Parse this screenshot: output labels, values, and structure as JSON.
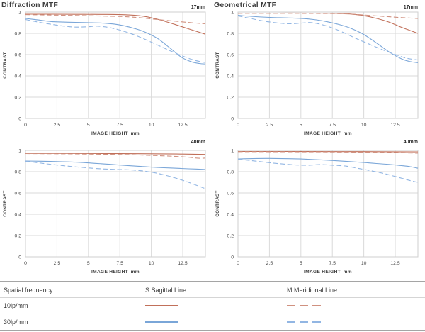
{
  "colors": {
    "s10": "#c1705a",
    "m10": "#d09180",
    "s30": "#7aa6d8",
    "m30": "#92b6e3",
    "grid": "#dadada",
    "plot_border": "#cfcfcf",
    "tick_text": "#474747",
    "axis_title_text": "#3f3f3f",
    "background": "#ffffff"
  },
  "axis": {
    "x_label": "IMAGE HEIGHT",
    "x_unit": "mm",
    "y_label": "CONTRAST",
    "x_ticks": [
      0,
      2.5,
      5,
      7.5,
      10,
      12.5
    ],
    "y_ticks": [
      1,
      0.8,
      0.6,
      0.4,
      0.2,
      0
    ],
    "x_max": 14.3,
    "y_max": 1
  },
  "chart_data": [
    {
      "type": "line",
      "title": "Diffraction MTF",
      "focal_length": "17mm",
      "xlabel": "IMAGE HEIGHT mm",
      "ylabel": "CONTRAST",
      "xlim": [
        0,
        14.3
      ],
      "ylim": [
        0,
        1
      ],
      "grid": true,
      "legend_position": "none",
      "series": [
        {
          "name": "S 10lp/mm",
          "style": "solid",
          "color_key": "s10",
          "points": [
            [
              0,
              0.98
            ],
            [
              2,
              0.98
            ],
            [
              4,
              0.979
            ],
            [
              6,
              0.978
            ],
            [
              7.5,
              0.976
            ],
            [
              9,
              0.966
            ],
            [
              10,
              0.947
            ],
            [
              11,
              0.916
            ],
            [
              12,
              0.879
            ],
            [
              13,
              0.841
            ],
            [
              14.3,
              0.792
            ]
          ]
        },
        {
          "name": "M 10lp/mm",
          "style": "dashed",
          "color_key": "m10",
          "points": [
            [
              0,
              0.976
            ],
            [
              2,
              0.972
            ],
            [
              4,
              0.968
            ],
            [
              6,
              0.963
            ],
            [
              8,
              0.956
            ],
            [
              9,
              0.948
            ],
            [
              10,
              0.936
            ],
            [
              11,
              0.924
            ],
            [
              12,
              0.913
            ],
            [
              13,
              0.902
            ],
            [
              14.3,
              0.89
            ]
          ]
        },
        {
          "name": "S 30lp/mm",
          "style": "solid",
          "color_key": "s30",
          "points": [
            [
              0,
              0.94
            ],
            [
              1,
              0.926
            ],
            [
              2,
              0.911
            ],
            [
              3,
              0.906
            ],
            [
              4,
              0.903
            ],
            [
              5,
              0.9
            ],
            [
              6,
              0.897
            ],
            [
              7,
              0.888
            ],
            [
              7.8,
              0.872
            ],
            [
              8.7,
              0.845
            ],
            [
              9.5,
              0.812
            ],
            [
              10.5,
              0.752
            ],
            [
              11.5,
              0.66
            ],
            [
              12.4,
              0.575
            ],
            [
              13.2,
              0.532
            ],
            [
              13.8,
              0.517
            ],
            [
              14.3,
              0.512
            ]
          ]
        },
        {
          "name": "M 30lp/mm",
          "style": "dashed",
          "color_key": "m30",
          "points": [
            [
              0,
              0.93
            ],
            [
              1,
              0.906
            ],
            [
              2,
              0.886
            ],
            [
              3,
              0.869
            ],
            [
              4,
              0.859
            ],
            [
              5,
              0.862
            ],
            [
              5.7,
              0.868
            ],
            [
              6.6,
              0.856
            ],
            [
              7.5,
              0.831
            ],
            [
              8.5,
              0.792
            ],
            [
              9.5,
              0.744
            ],
            [
              10.5,
              0.69
            ],
            [
              11.5,
              0.636
            ],
            [
              12.5,
              0.586
            ],
            [
              13.4,
              0.548
            ],
            [
              14.3,
              0.525
            ]
          ]
        }
      ]
    },
    {
      "type": "line",
      "title": "Geometrical MTF",
      "focal_length": "17mm",
      "xlabel": "IMAGE HEIGHT mm",
      "ylabel": "CONTRAST",
      "xlim": [
        0,
        14.3
      ],
      "ylim": [
        0,
        1
      ],
      "grid": true,
      "legend_position": "none",
      "series": [
        {
          "name": "S 10lp/mm",
          "style": "solid",
          "color_key": "s10",
          "points": [
            [
              0,
              0.99
            ],
            [
              3,
              0.99
            ],
            [
              6,
              0.99
            ],
            [
              8,
              0.988
            ],
            [
              9,
              0.981
            ],
            [
              10,
              0.966
            ],
            [
              11,
              0.941
            ],
            [
              12,
              0.906
            ],
            [
              13,
              0.857
            ],
            [
              14.3,
              0.8
            ]
          ]
        },
        {
          "name": "M 10lp/mm",
          "style": "dashed",
          "color_key": "m10",
          "points": [
            [
              0,
              0.988
            ],
            [
              3,
              0.988
            ],
            [
              6,
              0.987
            ],
            [
              8,
              0.985
            ],
            [
              9,
              0.981
            ],
            [
              10,
              0.973
            ],
            [
              11,
              0.964
            ],
            [
              12,
              0.956
            ],
            [
              13,
              0.948
            ],
            [
              14.3,
              0.94
            ]
          ]
        },
        {
          "name": "S 30lp/mm",
          "style": "solid",
          "color_key": "s30",
          "points": [
            [
              0,
              0.97
            ],
            [
              1,
              0.96
            ],
            [
              2.5,
              0.95
            ],
            [
              4,
              0.945
            ],
            [
              5,
              0.941
            ],
            [
              6,
              0.93
            ],
            [
              7,
              0.911
            ],
            [
              8,
              0.884
            ],
            [
              9,
              0.846
            ],
            [
              10,
              0.789
            ],
            [
              11,
              0.71
            ],
            [
              12,
              0.626
            ],
            [
              13,
              0.56
            ],
            [
              13.7,
              0.534
            ],
            [
              14.3,
              0.524
            ]
          ]
        },
        {
          "name": "M 30lp/mm",
          "style": "dashed",
          "color_key": "m30",
          "points": [
            [
              0,
              0.964
            ],
            [
              1,
              0.94
            ],
            [
              2,
              0.916
            ],
            [
              3,
              0.9
            ],
            [
              4,
              0.89
            ],
            [
              5,
              0.896
            ],
            [
              5.8,
              0.901
            ],
            [
              6.6,
              0.884
            ],
            [
              7.5,
              0.851
            ],
            [
              8.5,
              0.801
            ],
            [
              9.5,
              0.746
            ],
            [
              10.5,
              0.695
            ],
            [
              11.5,
              0.645
            ],
            [
              12.5,
              0.601
            ],
            [
              13.4,
              0.566
            ],
            [
              14.3,
              0.55
            ]
          ]
        }
      ]
    },
    {
      "type": "line",
      "title": "",
      "focal_length": "40mm",
      "xlabel": "IMAGE HEIGHT mm",
      "ylabel": "CONTRAST",
      "xlim": [
        0,
        14.3
      ],
      "ylim": [
        0,
        1
      ],
      "grid": true,
      "legend_position": "none",
      "series": [
        {
          "name": "S 10lp/mm",
          "style": "solid",
          "color_key": "s10",
          "points": [
            [
              0,
              0.972
            ],
            [
              3,
              0.972
            ],
            [
              6,
              0.971
            ],
            [
              9,
              0.969
            ],
            [
              12,
              0.966
            ],
            [
              14.3,
              0.962
            ]
          ]
        },
        {
          "name": "M 10lp/mm",
          "style": "dashed",
          "color_key": "m10",
          "points": [
            [
              0,
              0.97
            ],
            [
              3,
              0.968
            ],
            [
              6,
              0.964
            ],
            [
              8,
              0.96
            ],
            [
              10,
              0.953
            ],
            [
              12,
              0.943
            ],
            [
              13,
              0.935
            ],
            [
              13.8,
              0.926
            ],
            [
              14.3,
              0.928
            ]
          ]
        },
        {
          "name": "S 30lp/mm",
          "style": "solid",
          "color_key": "s30",
          "points": [
            [
              0,
              0.9
            ],
            [
              2,
              0.896
            ],
            [
              4,
              0.889
            ],
            [
              6,
              0.875
            ],
            [
              7.5,
              0.862
            ],
            [
              9,
              0.851
            ],
            [
              10,
              0.843
            ],
            [
              11,
              0.837
            ],
            [
              12,
              0.832
            ],
            [
              13,
              0.827
            ],
            [
              14.3,
              0.821
            ]
          ]
        },
        {
          "name": "M 30lp/mm",
          "style": "dashed",
          "color_key": "m30",
          "points": [
            [
              0,
              0.898
            ],
            [
              1.5,
              0.876
            ],
            [
              3,
              0.856
            ],
            [
              4.5,
              0.84
            ],
            [
              6,
              0.827
            ],
            [
              7.5,
              0.82
            ],
            [
              8.7,
              0.814
            ],
            [
              9.5,
              0.804
            ],
            [
              10.5,
              0.784
            ],
            [
              11.5,
              0.754
            ],
            [
              12.5,
              0.719
            ],
            [
              13.5,
              0.676
            ],
            [
              14.3,
              0.64
            ]
          ]
        }
      ]
    },
    {
      "type": "line",
      "title": "",
      "focal_length": "40mm",
      "xlabel": "IMAGE HEIGHT mm",
      "ylabel": "CONTRAST",
      "xlim": [
        0,
        14.3
      ],
      "ylim": [
        0,
        1
      ],
      "grid": true,
      "legend_position": "none",
      "series": [
        {
          "name": "S 10lp/mm",
          "style": "solid",
          "color_key": "s10",
          "points": [
            [
              0,
              0.99
            ],
            [
              4,
              0.99
            ],
            [
              8,
              0.989
            ],
            [
              11,
              0.988
            ],
            [
              14.3,
              0.986
            ]
          ]
        },
        {
          "name": "M 10lp/mm",
          "style": "dashed",
          "color_key": "m10",
          "points": [
            [
              0,
              0.988
            ],
            [
              4,
              0.987
            ],
            [
              8,
              0.985
            ],
            [
              11,
              0.982
            ],
            [
              13,
              0.978
            ],
            [
              14.3,
              0.974
            ]
          ]
        },
        {
          "name": "S 30lp/mm",
          "style": "solid",
          "color_key": "s30",
          "points": [
            [
              0,
              0.92
            ],
            [
              1.5,
              0.924
            ],
            [
              3,
              0.924
            ],
            [
              5,
              0.919
            ],
            [
              6.5,
              0.911
            ],
            [
              8,
              0.901
            ],
            [
              9,
              0.894
            ],
            [
              10,
              0.886
            ],
            [
              11,
              0.877
            ],
            [
              12,
              0.868
            ],
            [
              13,
              0.857
            ],
            [
              13.7,
              0.847
            ],
            [
              14.3,
              0.832
            ]
          ]
        },
        {
          "name": "M 30lp/mm",
          "style": "dashed",
          "color_key": "m30",
          "points": [
            [
              0,
              0.918
            ],
            [
              1.5,
              0.898
            ],
            [
              3,
              0.878
            ],
            [
              4.5,
              0.864
            ],
            [
              5.5,
              0.86
            ],
            [
              6.5,
              0.866
            ],
            [
              7.5,
              0.861
            ],
            [
              8.6,
              0.852
            ],
            [
              9.5,
              0.832
            ],
            [
              10.5,
              0.81
            ],
            [
              11.5,
              0.785
            ],
            [
              12.5,
              0.755
            ],
            [
              13.5,
              0.722
            ],
            [
              14.3,
              0.7
            ]
          ]
        }
      ]
    }
  ],
  "legend_table": {
    "headers": {
      "spatial_frequency": "Spatial frequency",
      "sagittal": "S:Sagittal Line",
      "meridional": "M:Meridional Line"
    },
    "rows": [
      {
        "label": "10lp/mm"
      },
      {
        "label": "30lp/mm"
      }
    ]
  }
}
